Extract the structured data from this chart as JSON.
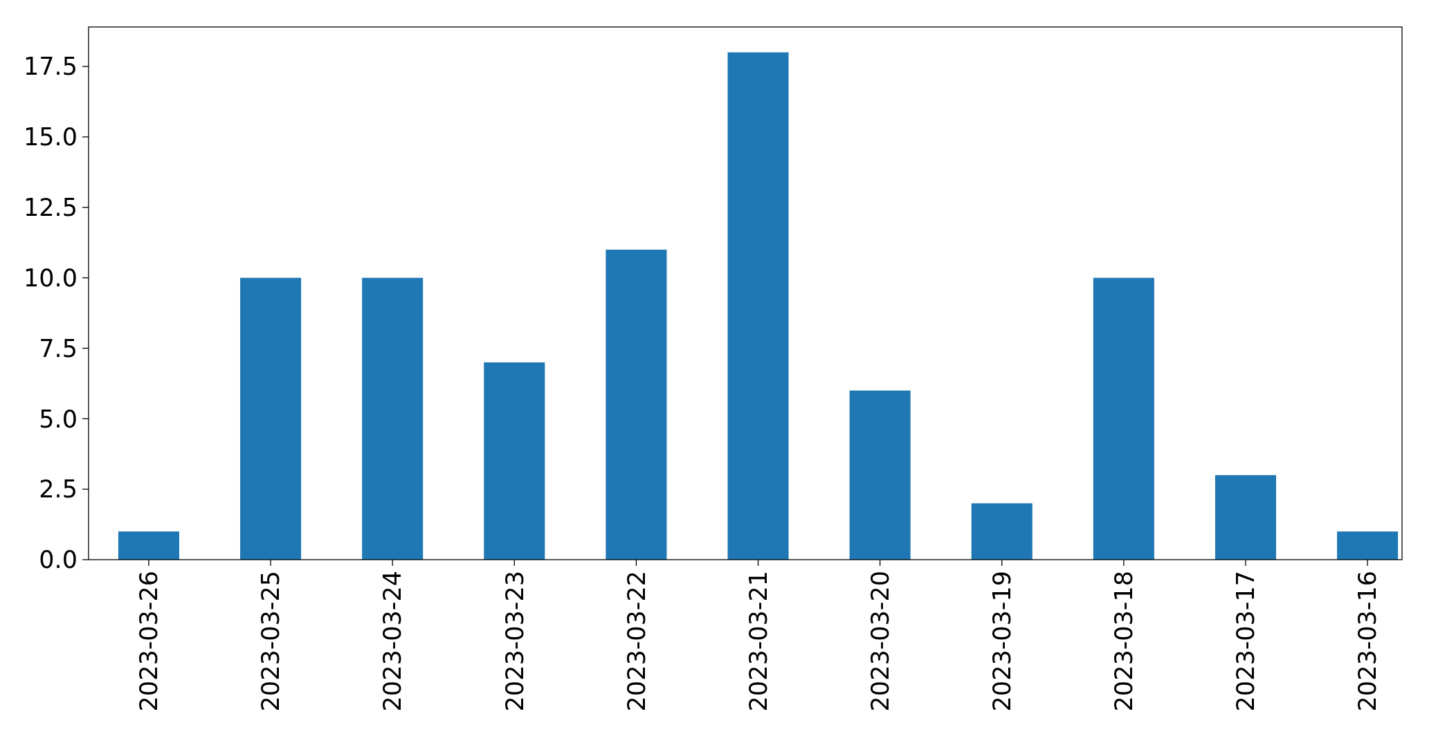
{
  "chart_data": {
    "type": "bar",
    "categories": [
      "2023-03-26",
      "2023-03-25",
      "2023-03-24",
      "2023-03-23",
      "2023-03-22",
      "2023-03-21",
      "2023-03-20",
      "2023-03-19",
      "2023-03-18",
      "2023-03-17",
      "2023-03-16"
    ],
    "values": [
      1,
      10,
      10,
      7,
      11,
      18,
      6,
      2,
      10,
      3,
      1
    ],
    "color": "#1f77b4",
    "ylim": [
      0,
      18.9
    ],
    "yticks": [
      {
        "value": 0,
        "label": "0.0"
      },
      {
        "value": 2.5,
        "label": "2.5"
      },
      {
        "value": 5,
        "label": "5.0"
      },
      {
        "value": 7.5,
        "label": "7.5"
      },
      {
        "value": 10,
        "label": "10.0"
      },
      {
        "value": 12.5,
        "label": "12.5"
      },
      {
        "value": 15,
        "label": "15.0"
      },
      {
        "value": 17.5,
        "label": "17.5"
      }
    ],
    "grid": false
  }
}
